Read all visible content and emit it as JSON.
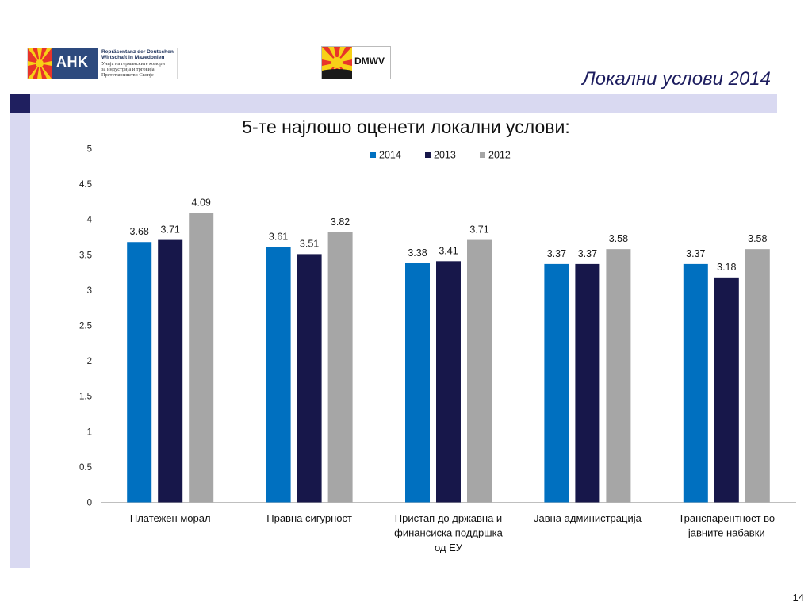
{
  "header": {
    "logo_ahk": {
      "mark": "AHK",
      "lines": [
        "Repräsentanz der Deutschen",
        "Wirtschaft in Mazedonien",
        "Унија на германските комори",
        "за индустрија и трговија",
        "Претставништво Скопје"
      ]
    },
    "logo_dmwv": {
      "mark": "DMWV"
    },
    "slide_title": "Локални услови 2014"
  },
  "footer": {
    "page_number": "14"
  },
  "colors": {
    "band": "#d9d9f1",
    "band_accent": "#1f1f5f",
    "series_2014": "#0070c0",
    "series_2013": "#17174a",
    "series_2012": "#a6a6a6",
    "title_color": "#1c1c5e"
  },
  "chart_data": {
    "type": "bar",
    "title": "5-те најлошо оценети локални услови:",
    "xlabel": "",
    "ylabel": "",
    "ylim": [
      0,
      5
    ],
    "yticks": [
      "0",
      "0.5",
      "1",
      "1.5",
      "2",
      "2.5",
      "3",
      "3.5",
      "4",
      "4.5",
      "5"
    ],
    "grid": false,
    "legend_position": "top",
    "categories": [
      "Платежен морал",
      "Правна сигурност",
      "Пристап до државна и финансиска поддршка од ЕУ",
      "Јавна администрација",
      "Транспарентност во јавните набавки"
    ],
    "category_lines": [
      [
        "Платежен морал"
      ],
      [
        "Правна сигурност"
      ],
      [
        "Пристап до државна и",
        "финансиска поддршка",
        "од ЕУ"
      ],
      [
        "Јавна администрација"
      ],
      [
        "Транспарентност во",
        "јавните набавки"
      ]
    ],
    "series": [
      {
        "name": "2014",
        "color": "#0070c0",
        "values": [
          3.68,
          3.61,
          3.38,
          3.37,
          3.37
        ],
        "labels": [
          "3.68",
          "3.61",
          "3.38",
          "3.37",
          "3.37"
        ]
      },
      {
        "name": "2013",
        "color": "#17174a",
        "values": [
          3.71,
          3.51,
          3.41,
          3.37,
          3.18
        ],
        "labels": [
          "3.71",
          "3.51",
          "3.41",
          "3.37",
          "3.18"
        ]
      },
      {
        "name": "2012",
        "color": "#a6a6a6",
        "values": [
          4.09,
          3.82,
          3.71,
          3.58,
          3.58
        ],
        "labels": [
          "4.09",
          "3.82",
          "3.71",
          "3.58",
          "3.58"
        ]
      }
    ]
  }
}
